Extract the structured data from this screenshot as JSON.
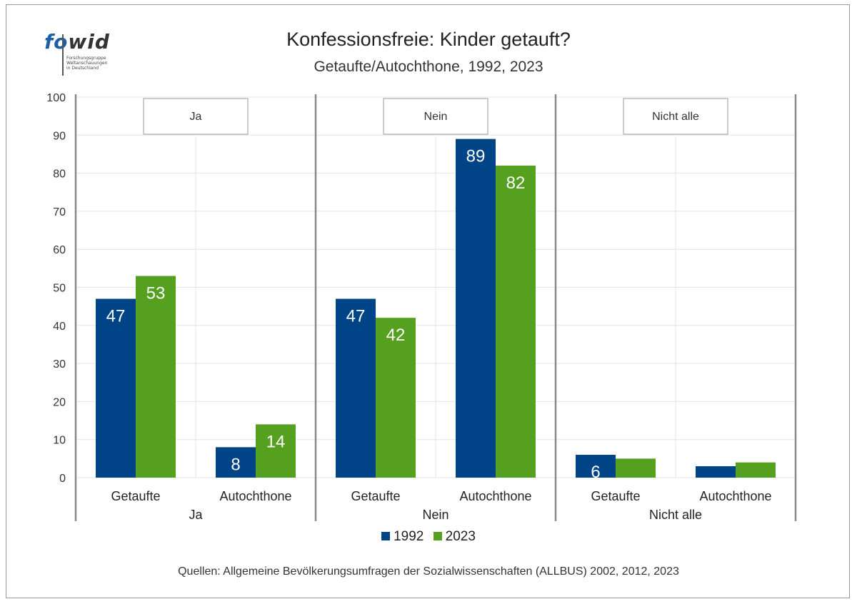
{
  "logo": {
    "wordmark_fo": "fo",
    "wordmark_wid": "wid",
    "lines": [
      "Forschungsgruppe",
      "Weltanschauungen",
      "in Deutschland"
    ]
  },
  "title": "Konfessionsfreie: Kinder getauft?",
  "subtitle": "Getaufte/Autochthone, 1992, 2023",
  "source": "Quellen: Allgemeine Bevölkerungsumfragen der Sozialwissenschaften (ALLBUS) 2002, 2012, 2023",
  "colors": {
    "1992": "#004488",
    "2023": "#56a020"
  },
  "chart_data": {
    "type": "bar",
    "ylim": [
      0,
      100
    ],
    "yticks": [
      0,
      10,
      20,
      30,
      40,
      50,
      60,
      70,
      80,
      90,
      100
    ],
    "grid": true,
    "legend_position": "bottom",
    "series": [
      {
        "name": "1992",
        "color": "#004488"
      },
      {
        "name": "2023",
        "color": "#56a020"
      }
    ],
    "panels": [
      {
        "label": "Ja",
        "categories": [
          "Getaufte",
          "Autochthone"
        ],
        "values": {
          "1992": [
            47,
            8
          ],
          "2023": [
            53,
            14
          ]
        },
        "data_labels": {
          "1992": [
            "47",
            "8"
          ],
          "2023": [
            "53",
            "14"
          ]
        }
      },
      {
        "label": "Nein",
        "categories": [
          "Getaufte",
          "Autochthone"
        ],
        "values": {
          "1992": [
            47,
            89
          ],
          "2023": [
            42,
            82
          ]
        },
        "data_labels": {
          "1992": [
            "47",
            "89"
          ],
          "2023": [
            "42",
            "82"
          ]
        }
      },
      {
        "label": "Nicht alle",
        "categories": [
          "Getaufte",
          "Autochthone"
        ],
        "values": {
          "1992": [
            6,
            3
          ],
          "2023": [
            5,
            4
          ]
        },
        "data_labels": {
          "1992": [
            "6",
            ""
          ],
          "2023": [
            "",
            ""
          ]
        }
      }
    ]
  }
}
